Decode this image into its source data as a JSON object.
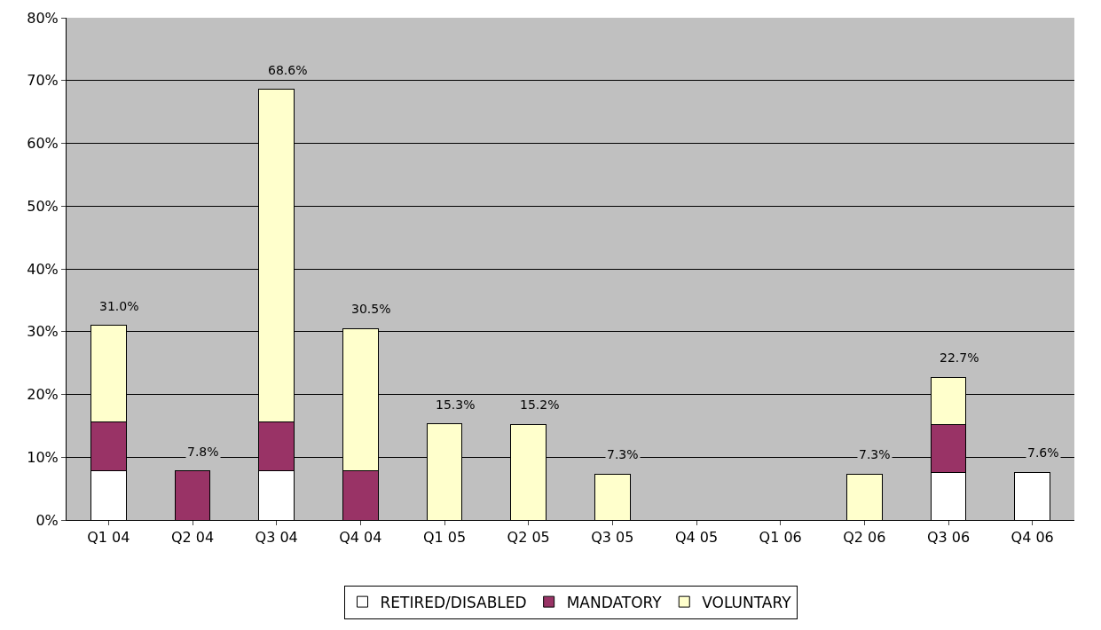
{
  "chart_data": {
    "type": "bar",
    "stacked": true,
    "categories": [
      "Q1 04",
      "Q2 04",
      "Q3 04",
      "Q4 04",
      "Q1 05",
      "Q2 05",
      "Q3 05",
      "Q4 05",
      "Q1 06",
      "Q2 06",
      "Q3 06",
      "Q4 06"
    ],
    "series": [
      {
        "name": "RETIRED/DISABLED",
        "color": "#ffffff",
        "values": [
          7.8,
          null,
          7.8,
          null,
          null,
          null,
          null,
          0,
          0,
          null,
          7.6,
          7.6
        ]
      },
      {
        "name": "MANDATORY",
        "color": "#993366",
        "values": [
          7.8,
          7.8,
          7.8,
          7.8,
          null,
          null,
          null,
          null,
          null,
          null,
          7.6,
          null
        ]
      },
      {
        "name": "VOLUNTARY",
        "color": "#ffffcc",
        "values": [
          15.4,
          null,
          53.0,
          22.7,
          15.3,
          15.2,
          7.3,
          null,
          null,
          7.3,
          7.5,
          null
        ]
      }
    ],
    "totals": [
      "31.0%",
      "7.8%",
      "68.6%",
      "30.5%",
      "15.3%",
      "15.2%",
      "7.3%",
      null,
      null,
      "7.3%",
      "22.7%",
      "7.6%"
    ],
    "ylim": [
      0,
      80
    ],
    "yticks": [
      {
        "value": 0,
        "label": "0%"
      },
      {
        "value": 10,
        "label": "10%"
      },
      {
        "value": 20,
        "label": "20%"
      },
      {
        "value": 30,
        "label": "30%"
      },
      {
        "value": 40,
        "label": "40%"
      },
      {
        "value": 50,
        "label": "50%"
      },
      {
        "value": 60,
        "label": "60%"
      },
      {
        "value": 70,
        "label": "70%"
      },
      {
        "value": 80,
        "label": "80%"
      }
    ],
    "grid": "y",
    "legend": "bottom"
  }
}
